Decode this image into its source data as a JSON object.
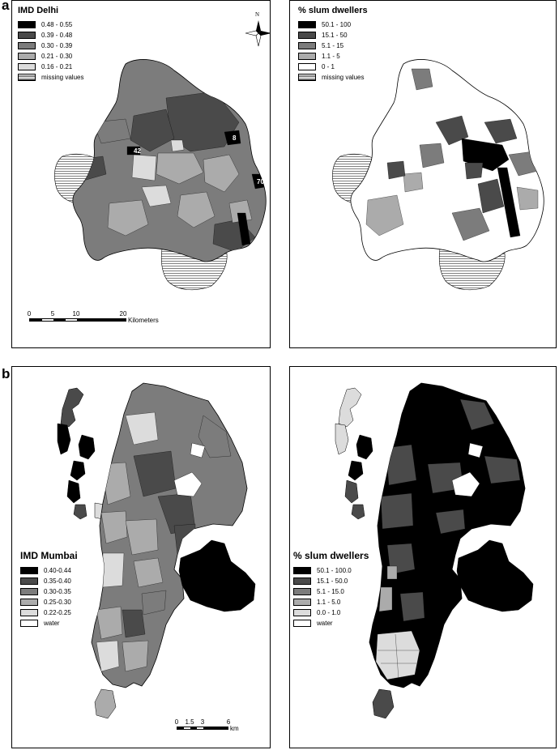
{
  "panels": [
    {
      "label": "a"
    },
    {
      "label": "b"
    }
  ],
  "delhi_imd": {
    "title": "IMD Delhi",
    "legend": [
      {
        "label": "0.48 - 0.55",
        "color": "#000000"
      },
      {
        "label": "0.39 - 0.48",
        "color": "#4a4a4a"
      },
      {
        "label": "0.30 - 0.39",
        "color": "#7c7c7c"
      },
      {
        "label": "0.21 - 0.30",
        "color": "#ababab"
      },
      {
        "label": "0.16 - 0.21",
        "color": "#dcdcdc"
      },
      {
        "label": "missing values",
        "color": "hatch"
      }
    ],
    "map_labels": [
      "42",
      "8",
      "70"
    ],
    "north": "N",
    "scale": {
      "ticks": [
        "0",
        "5",
        "10",
        "20"
      ],
      "unit": "Kilometers"
    }
  },
  "delhi_slum": {
    "title": "% slum dwellers",
    "legend": [
      {
        "label": "50.1 - 100",
        "color": "#000000"
      },
      {
        "label": "15.1 - 50",
        "color": "#4a4a4a"
      },
      {
        "label": "5.1 - 15",
        "color": "#7c7c7c"
      },
      {
        "label": "1.1 - 5",
        "color": "#ababab"
      },
      {
        "label": "0 - 1",
        "color": "#ffffff"
      },
      {
        "label": "missing values",
        "color": "hatch"
      }
    ]
  },
  "mumbai_imd": {
    "title": "IMD Mumbai",
    "legend": [
      {
        "label": "0.40-0.44",
        "color": "#000000"
      },
      {
        "label": "0.35-0.40",
        "color": "#4a4a4a"
      },
      {
        "label": "0.30-0.35",
        "color": "#7c7c7c"
      },
      {
        "label": "0.25-0.30",
        "color": "#ababab"
      },
      {
        "label": "0.22-0.25",
        "color": "#dcdcdc"
      },
      {
        "label": "water",
        "color": "#ffffff"
      }
    ],
    "scale": {
      "ticks": [
        "0",
        "1.5",
        "3",
        "6"
      ],
      "unit": "km"
    }
  },
  "mumbai_slum": {
    "title": "% slum dwellers",
    "legend": [
      {
        "label": "50.1 - 100.0",
        "color": "#000000"
      },
      {
        "label": "15.1 - 50.0",
        "color": "#4a4a4a"
      },
      {
        "label": "5.1 - 15.0",
        "color": "#7c7c7c"
      },
      {
        "label": "1.1 - 5.0",
        "color": "#ababab"
      },
      {
        "label": "0.0 - 1.0",
        "color": "#dcdcdc"
      },
      {
        "label": "water",
        "color": "#ffffff"
      }
    ]
  }
}
